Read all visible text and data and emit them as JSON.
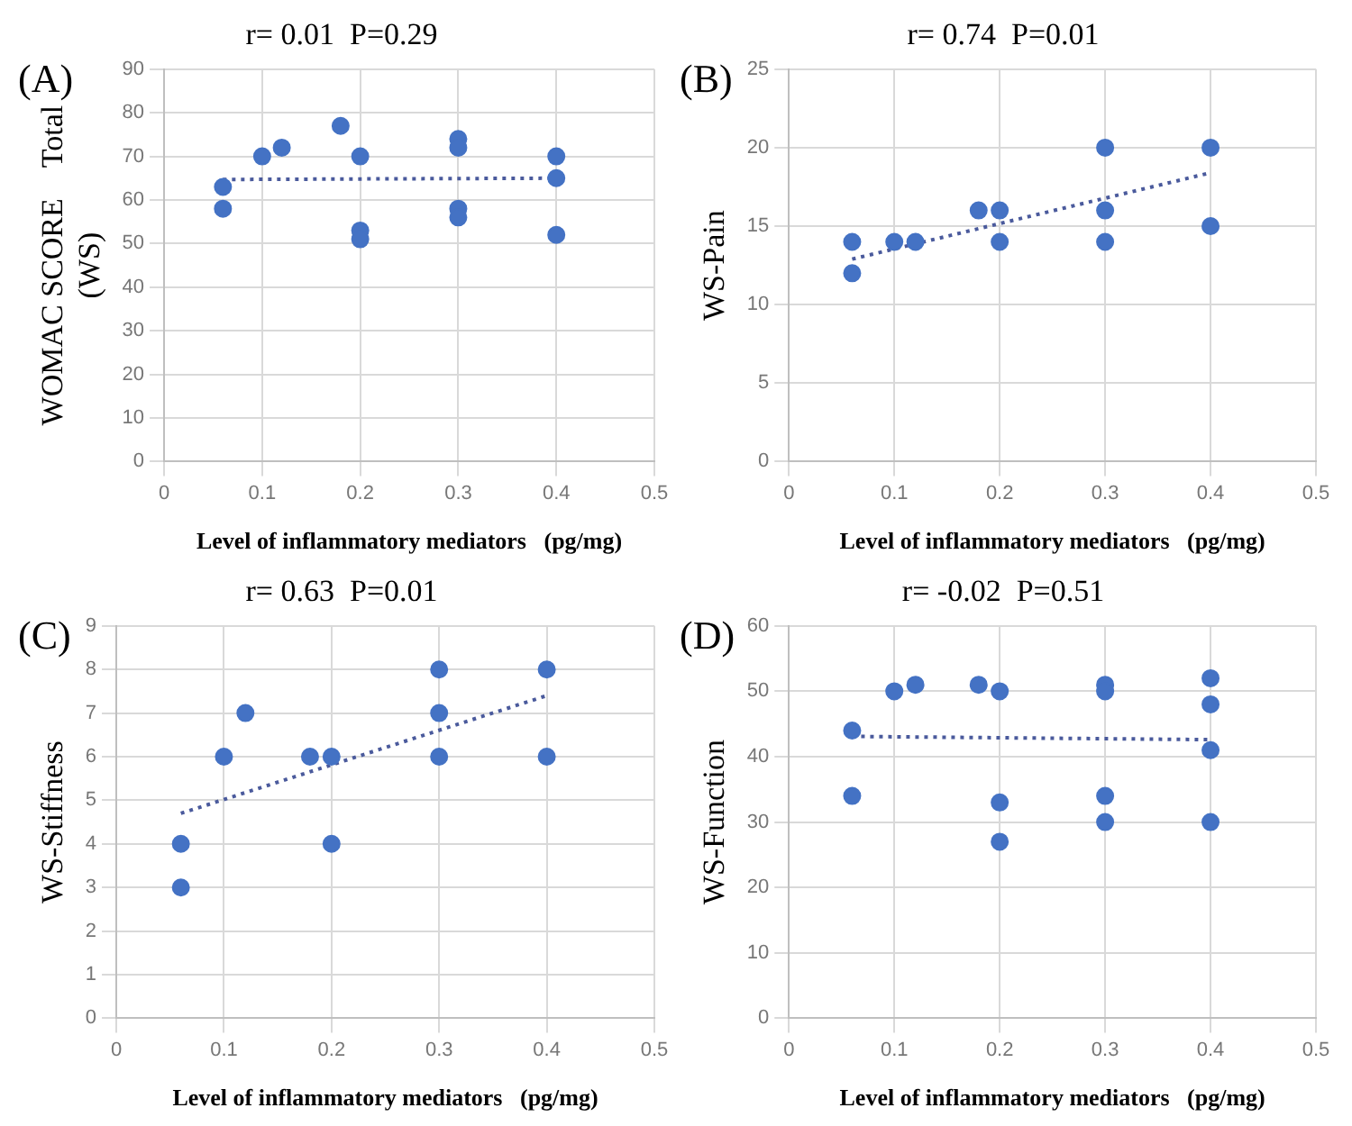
{
  "chart_data": [
    {
      "type": "scatter",
      "title": "r= 0.01  P=0.29",
      "xlabel": "Level of inflammatory mediators   (pg/mg)",
      "ylabel": "WOMAC SCORE　Total\n(WS)",
      "annotations": [
        "(A)"
      ],
      "xlim": [
        0,
        0.5
      ],
      "xticks": [
        0,
        0.1,
        0.2,
        0.3,
        0.4,
        0.5
      ],
      "ylim": [
        0,
        90
      ],
      "yticks": [
        0,
        10,
        20,
        30,
        40,
        50,
        60,
        70,
        80,
        90
      ],
      "grid": true,
      "legend": false,
      "series": [
        {
          "marker": "circle",
          "color": "#4472c4",
          "x": [
            0.06,
            0.06,
            0.1,
            0.12,
            0.18,
            0.2,
            0.2,
            0.2,
            0.3,
            0.3,
            0.3,
            0.3,
            0.4,
            0.4,
            0.4
          ],
          "values": [
            63,
            58,
            70,
            72,
            77,
            70,
            53,
            51,
            74,
            72,
            58,
            56,
            70,
            65,
            52
          ]
        },
        {
          "type": "line",
          "marker": "none",
          "color": "#4a5a9c",
          "line_style": "dotted",
          "x": [
            0.06,
            0.4
          ],
          "values": [
            64.7,
            65
          ]
        }
      ]
    },
    {
      "type": "scatter",
      "title": "r= 0.74  P=0.01",
      "xlabel": "Level of inflammatory mediators   (pg/mg)",
      "ylabel": "WS-Pain",
      "annotations": [
        "(B)"
      ],
      "xlim": [
        0,
        0.5
      ],
      "xticks": [
        0,
        0.1,
        0.2,
        0.3,
        0.4,
        0.5
      ],
      "ylim": [
        0,
        25
      ],
      "yticks": [
        0,
        5,
        10,
        15,
        20,
        25
      ],
      "grid": true,
      "legend": false,
      "series": [
        {
          "marker": "circle",
          "color": "#4472c4",
          "x": [
            0.06,
            0.06,
            0.1,
            0.12,
            0.18,
            0.2,
            0.2,
            0.3,
            0.3,
            0.3,
            0.4,
            0.4
          ],
          "values": [
            14,
            12,
            14,
            14,
            16,
            16,
            14,
            20,
            16,
            14,
            20,
            15
          ]
        },
        {
          "type": "line",
          "marker": "none",
          "color": "#4a5a9c",
          "line_style": "dotted",
          "x": [
            0.06,
            0.4
          ],
          "values": [
            12.9,
            18.4
          ]
        }
      ]
    },
    {
      "type": "scatter",
      "title": "r= 0.63  P=0.01",
      "xlabel": "Level of inflammatory mediators   (pg/mg)",
      "ylabel": "WS-Stiffness",
      "annotations": [
        "(C)"
      ],
      "xlim": [
        0,
        0.5
      ],
      "xticks": [
        0,
        0.1,
        0.2,
        0.3,
        0.4,
        0.5
      ],
      "ylim": [
        0,
        9
      ],
      "yticks": [
        0,
        1,
        2,
        3,
        4,
        5,
        6,
        7,
        8,
        9
      ],
      "grid": true,
      "legend": false,
      "series": [
        {
          "marker": "circle",
          "color": "#4472c4",
          "x": [
            0.06,
            0.06,
            0.1,
            0.12,
            0.18,
            0.2,
            0.2,
            0.3,
            0.3,
            0.3,
            0.4,
            0.4
          ],
          "values": [
            4,
            3,
            6,
            7,
            6,
            6,
            4,
            8,
            7,
            6,
            8,
            6
          ]
        },
        {
          "type": "line",
          "marker": "none",
          "color": "#4a5a9c",
          "line_style": "dotted",
          "x": [
            0.06,
            0.4
          ],
          "values": [
            4.7,
            7.4
          ]
        }
      ]
    },
    {
      "type": "scatter",
      "title": "r= -0.02  P=0.51",
      "xlabel": "Level of inflammatory mediators   (pg/mg)",
      "ylabel": "WS-Function",
      "annotations": [
        "(D)"
      ],
      "xlim": [
        0,
        0.5
      ],
      "xticks": [
        0,
        0.1,
        0.2,
        0.3,
        0.4,
        0.5
      ],
      "ylim": [
        0,
        60
      ],
      "yticks": [
        0,
        10,
        20,
        30,
        40,
        50,
        60
      ],
      "grid": true,
      "legend": false,
      "series": [
        {
          "marker": "circle",
          "color": "#4472c4",
          "x": [
            0.06,
            0.06,
            0.1,
            0.12,
            0.18,
            0.2,
            0.2,
            0.2,
            0.3,
            0.3,
            0.3,
            0.3,
            0.4,
            0.4,
            0.4,
            0.4
          ],
          "values": [
            44,
            34,
            50,
            51,
            51,
            50,
            33,
            27,
            51,
            50,
            34,
            30,
            52,
            48,
            41,
            30
          ]
        },
        {
          "type": "line",
          "marker": "none",
          "color": "#4a5a9c",
          "line_style": "dotted",
          "x": [
            0.06,
            0.4
          ],
          "values": [
            43.1,
            42.6
          ]
        }
      ]
    }
  ]
}
